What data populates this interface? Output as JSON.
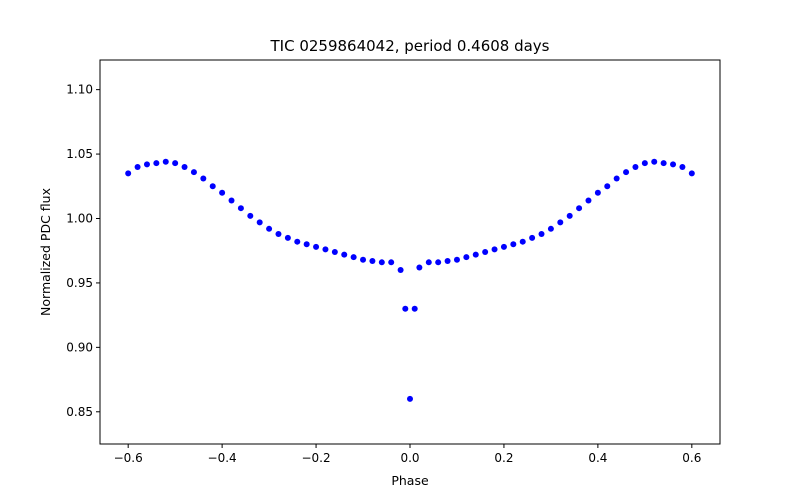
{
  "chart_data": {
    "type": "scatter",
    "title": "TIC 0259864042, period 0.4608 days",
    "xlabel": "Phase",
    "ylabel": "Normalized PDC flux",
    "xlim": [
      -0.66,
      0.66
    ],
    "ylim": [
      0.825,
      1.123
    ],
    "grid": false,
    "legend": "none",
    "marker_color": "#0000ff",
    "xticks": [
      -0.6,
      -0.4,
      -0.2,
      0.0,
      0.2,
      0.4,
      0.6
    ],
    "xtick_labels": [
      "−0.6",
      "−0.4",
      "−0.2",
      "0.0",
      "0.2",
      "0.4",
      "0.6"
    ],
    "yticks": [
      0.85,
      0.9,
      0.95,
      1.0,
      1.05,
      1.1
    ],
    "ytick_labels": [
      "0.85",
      "0.90",
      "0.95",
      "1.00",
      "1.05",
      "1.10"
    ],
    "series": [
      {
        "x": [
          -0.6,
          -0.58,
          -0.56,
          -0.54,
          -0.52,
          -0.5,
          -0.48,
          -0.46,
          -0.44,
          -0.42,
          -0.4,
          -0.38,
          -0.36,
          -0.34,
          -0.32,
          -0.3,
          -0.28,
          -0.26,
          -0.24,
          -0.22,
          -0.2,
          -0.18,
          -0.16,
          -0.14,
          -0.12,
          -0.1,
          -0.08,
          -0.06,
          -0.04,
          -0.02,
          -0.01,
          0.0,
          0.01,
          0.02,
          0.04,
          0.06,
          0.08,
          0.1,
          0.12,
          0.14,
          0.16,
          0.18,
          0.2,
          0.22,
          0.24,
          0.26,
          0.28,
          0.3,
          0.32,
          0.34,
          0.36,
          0.38,
          0.4,
          0.42,
          0.44,
          0.46,
          0.48,
          0.5,
          0.52,
          0.54,
          0.56,
          0.58,
          0.6
        ],
        "y": [
          1.035,
          1.04,
          1.042,
          1.043,
          1.044,
          1.043,
          1.04,
          1.036,
          1.031,
          1.025,
          1.02,
          1.014,
          1.008,
          1.002,
          0.997,
          0.992,
          0.988,
          0.985,
          0.982,
          0.98,
          0.978,
          0.976,
          0.974,
          0.972,
          0.97,
          0.968,
          0.967,
          0.966,
          0.966,
          0.96,
          0.93,
          0.86,
          0.93,
          0.962,
          0.966,
          0.966,
          0.967,
          0.968,
          0.97,
          0.972,
          0.974,
          0.976,
          0.978,
          0.98,
          0.982,
          0.985,
          0.988,
          0.992,
          0.997,
          1.002,
          1.008,
          1.014,
          1.02,
          1.025,
          1.031,
          1.036,
          1.04,
          1.043,
          1.044,
          1.043,
          1.042,
          1.04,
          1.035
        ]
      }
    ]
  }
}
